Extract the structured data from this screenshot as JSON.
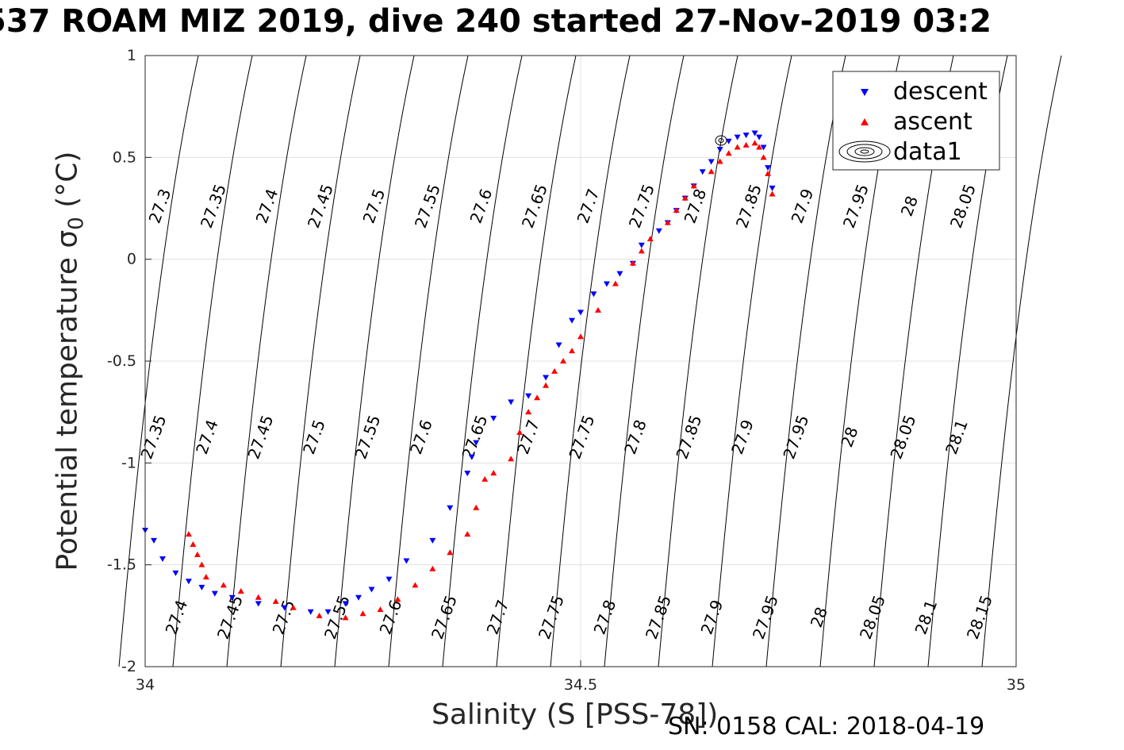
{
  "chart_data": {
    "type": "scatter",
    "title": "537 ROAM MIZ 2019, dive 240 started 27-Nov-2019 03:2",
    "xlabel": "Salinity (S [PSS-78])",
    "ylabel": "Potential temperature σ",
    "ylabel_sub": "0",
    "ylabel_unit": " (°C)",
    "annotation": "SN: 0158  CAL: 2018-04-19",
    "xlim": [
      34,
      35
    ],
    "ylim": [
      -2,
      1
    ],
    "x_ticks": [
      "34",
      "34.5",
      "35"
    ],
    "y_ticks": [
      "1",
      "0.5",
      "0",
      "-0.5",
      "-1",
      "-1.5",
      "-2"
    ],
    "grid": true,
    "legend": {
      "placement": "top-right",
      "entries": [
        "descent",
        "ascent",
        "data1"
      ]
    },
    "colors": {
      "descent": "#0000ff",
      "ascent": "#ff0000",
      "contour": "#000000"
    },
    "contour_labels": {
      "row_top": [
        "27.3",
        "27.35",
        "27.4",
        "27.45",
        "27.5",
        "27.55",
        "27.6",
        "27.65",
        "27.7",
        "27.75",
        "27.8",
        "27.85",
        "27.9",
        "27.95",
        "28",
        "28.05"
      ],
      "row_mid": [
        "27.35",
        "27.4",
        "27.45",
        "27.5",
        "27.55",
        "27.6",
        "27.65",
        "27.7",
        "27.75",
        "27.8",
        "27.85",
        "27.9",
        "27.95",
        "28",
        "28.05",
        "28.1"
      ],
      "row_bottom": [
        "27.4",
        "27.45",
        "27.5",
        "27.55",
        "27.6",
        "27.65",
        "27.7",
        "27.75",
        "27.8",
        "27.85",
        "27.9",
        "27.95",
        "28",
        "28.05",
        "28.1",
        "28.15"
      ]
    },
    "series": [
      {
        "name": "descent",
        "marker": "triangle-down",
        "x": [
          34.0,
          34.01,
          34.02,
          34.035,
          34.05,
          34.065,
          34.08,
          34.1,
          34.13,
          34.16,
          34.19,
          34.21,
          34.23,
          34.245,
          34.26,
          34.28,
          34.3,
          34.33,
          34.35,
          34.37,
          34.375,
          34.38,
          34.4,
          34.42,
          34.44,
          34.46,
          34.475,
          34.49,
          34.5,
          34.515,
          34.53,
          34.545,
          34.56,
          34.57,
          34.59,
          34.6,
          34.61,
          34.62,
          34.63,
          34.64,
          34.65,
          34.66,
          34.67,
          34.68,
          34.69,
          34.7,
          34.705,
          34.71,
          34.715,
          34.72
        ],
        "y": [
          -1.33,
          -1.38,
          -1.47,
          -1.54,
          -1.58,
          -1.61,
          -1.64,
          -1.66,
          -1.69,
          -1.71,
          -1.73,
          -1.73,
          -1.69,
          -1.66,
          -1.62,
          -1.57,
          -1.48,
          -1.38,
          -1.22,
          -1.05,
          -0.97,
          -0.9,
          -0.78,
          -0.7,
          -0.67,
          -0.58,
          -0.42,
          -0.3,
          -0.26,
          -0.17,
          -0.12,
          -0.07,
          -0.02,
          0.07,
          0.14,
          0.18,
          0.24,
          0.3,
          0.36,
          0.43,
          0.48,
          0.54,
          0.58,
          0.6,
          0.61,
          0.62,
          0.6,
          0.55,
          0.45,
          0.35
        ]
      },
      {
        "name": "ascent",
        "marker": "triangle-up",
        "x": [
          34.05,
          34.055,
          34.06,
          34.065,
          34.07,
          34.09,
          34.11,
          34.13,
          34.15,
          34.17,
          34.2,
          34.23,
          34.25,
          34.27,
          34.29,
          34.31,
          34.33,
          34.35,
          34.37,
          34.38,
          34.39,
          34.4,
          34.42,
          34.43,
          34.44,
          34.45,
          34.46,
          34.47,
          34.48,
          34.49,
          34.5,
          34.52,
          34.54,
          34.56,
          34.57,
          34.58,
          34.6,
          34.61,
          34.62,
          34.63,
          34.65,
          34.66,
          34.67,
          34.68,
          34.69,
          34.7,
          34.705,
          34.71,
          34.715,
          34.72
        ],
        "y": [
          -1.35,
          -1.4,
          -1.45,
          -1.5,
          -1.56,
          -1.6,
          -1.63,
          -1.66,
          -1.68,
          -1.71,
          -1.75,
          -1.76,
          -1.74,
          -1.72,
          -1.67,
          -1.6,
          -1.52,
          -1.44,
          -1.35,
          -1.22,
          -1.08,
          -1.05,
          -0.98,
          -0.85,
          -0.75,
          -0.68,
          -0.62,
          -0.55,
          -0.5,
          -0.45,
          -0.38,
          -0.25,
          -0.12,
          -0.02,
          0.04,
          0.1,
          0.18,
          0.24,
          0.3,
          0.36,
          0.43,
          0.48,
          0.52,
          0.55,
          0.56,
          0.57,
          0.55,
          0.5,
          0.42,
          0.32
        ]
      }
    ]
  }
}
